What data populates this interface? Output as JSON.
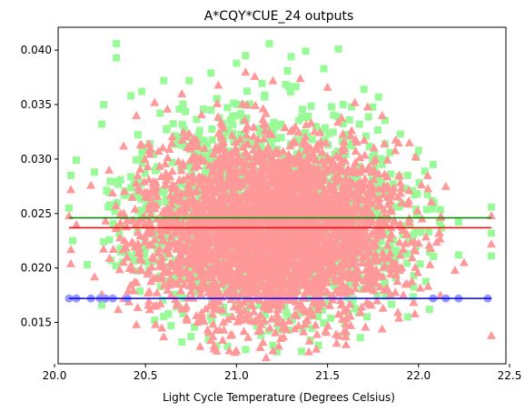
{
  "chart_data": {
    "type": "scatter",
    "title": "A*CQY*CUE_24 outputs",
    "xlabel": "Light Cycle Temperature (Degrees Celsius)",
    "ylabel": "",
    "xlim": [
      20.02,
      22.48
    ],
    "ylim": [
      0.0112,
      0.0421
    ],
    "x_ticks": [
      20.0,
      20.5,
      21.0,
      21.5,
      22.0,
      22.5
    ],
    "x_tick_labels": [
      "20.0",
      "20.5",
      "21.0",
      "21.5",
      "22.0",
      "22.5"
    ],
    "y_ticks": [
      0.015,
      0.02,
      0.025,
      0.03,
      0.035,
      0.04
    ],
    "y_tick_labels": [
      "0.015",
      "0.020",
      "0.025",
      "0.030",
      "0.035",
      "0.040"
    ],
    "grid": false,
    "legend": "none",
    "series": [
      {
        "marker": "square",
        "color": "#98fb98",
        "x_range": [
          20.08,
          22.4
        ],
        "center": [
          21.2,
          0.0246
        ],
        "points": [
          [
            20.09,
            0.0285
          ],
          [
            20.08,
            0.0255
          ],
          [
            20.1,
            0.0225
          ],
          [
            20.12,
            0.0299
          ],
          [
            20.22,
            0.0288
          ],
          [
            20.26,
            0.0332
          ],
          [
            20.27,
            0.035
          ],
          [
            20.34,
            0.0406
          ],
          [
            20.34,
            0.0393
          ],
          [
            20.42,
            0.0358
          ],
          [
            20.48,
            0.0362
          ],
          [
            20.6,
            0.0372
          ],
          [
            20.74,
            0.0372
          ],
          [
            20.86,
            0.0379
          ],
          [
            21.0,
            0.0388
          ],
          [
            21.05,
            0.0395
          ],
          [
            21.18,
            0.0406
          ],
          [
            21.3,
            0.0394
          ],
          [
            21.38,
            0.0399
          ],
          [
            21.48,
            0.0383
          ],
          [
            21.56,
            0.0401
          ],
          [
            21.7,
            0.0364
          ],
          [
            21.78,
            0.0357
          ],
          [
            21.9,
            0.0323
          ],
          [
            22.0,
            0.0308
          ],
          [
            22.08,
            0.0295
          ],
          [
            22.22,
            0.0242
          ],
          [
            22.4,
            0.0256
          ],
          [
            22.4,
            0.0232
          ],
          [
            22.4,
            0.0211
          ],
          [
            22.22,
            0.0212
          ],
          [
            20.55,
            0.0152
          ],
          [
            20.7,
            0.0132
          ],
          [
            20.95,
            0.0128
          ],
          [
            21.05,
            0.0125
          ],
          [
            21.2,
            0.0129
          ],
          [
            21.45,
            0.0129
          ],
          [
            21.68,
            0.0136
          ],
          [
            21.94,
            0.0155
          ],
          [
            22.06,
            0.0162
          ],
          [
            20.26,
            0.0166
          ],
          [
            20.18,
            0.0203
          ],
          [
            20.27,
            0.0224
          ],
          [
            20.58,
            0.0342
          ],
          [
            20.86,
            0.0345
          ],
          [
            21.28,
            0.0381
          ],
          [
            21.62,
            0.0336
          ],
          [
            21.95,
            0.0226
          ]
        ]
      },
      {
        "marker": "triangle",
        "color": "#ff9999",
        "x_range": [
          20.08,
          22.4
        ],
        "center": [
          21.2,
          0.0237
        ],
        "points": [
          [
            20.09,
            0.0272
          ],
          [
            20.08,
            0.0248
          ],
          [
            20.09,
            0.0217
          ],
          [
            20.09,
            0.0204
          ],
          [
            20.2,
            0.0276
          ],
          [
            20.3,
            0.029
          ],
          [
            20.38,
            0.0312
          ],
          [
            20.45,
            0.034
          ],
          [
            20.55,
            0.0352
          ],
          [
            20.7,
            0.036
          ],
          [
            20.9,
            0.0368
          ],
          [
            21.05,
            0.038
          ],
          [
            21.2,
            0.0372
          ],
          [
            21.35,
            0.0374
          ],
          [
            21.5,
            0.0366
          ],
          [
            21.65,
            0.0352
          ],
          [
            21.8,
            0.034
          ],
          [
            21.95,
            0.0315
          ],
          [
            22.05,
            0.0285
          ],
          [
            22.15,
            0.0275
          ],
          [
            22.4,
            0.0248
          ],
          [
            22.4,
            0.0222
          ],
          [
            22.4,
            0.0138
          ],
          [
            22.25,
            0.0205
          ],
          [
            22.12,
            0.0175
          ],
          [
            21.98,
            0.0158
          ],
          [
            21.8,
            0.0144
          ],
          [
            21.6,
            0.0137
          ],
          [
            21.4,
            0.0133
          ],
          [
            21.2,
            0.0124
          ],
          [
            21.0,
            0.0124
          ],
          [
            20.8,
            0.0128
          ],
          [
            20.6,
            0.0137
          ],
          [
            20.45,
            0.0148
          ],
          [
            20.35,
            0.0162
          ],
          [
            20.26,
            0.0176
          ],
          [
            20.22,
            0.0192
          ],
          [
            20.12,
            0.024
          ],
          [
            21.1,
            0.0376
          ],
          [
            21.72,
            0.0348
          ],
          [
            20.62,
            0.0346
          ],
          [
            20.38,
            0.0172
          ],
          [
            22.2,
            0.0198
          ],
          [
            21.55,
            0.0131
          ]
        ]
      },
      {
        "marker": "circle",
        "color": "#9999ff",
        "points": [
          [
            20.08,
            0.0172
          ],
          [
            20.12,
            0.0172
          ],
          [
            20.2,
            0.0172
          ],
          [
            20.25,
            0.0172
          ],
          [
            20.28,
            0.0172
          ],
          [
            20.32,
            0.0172
          ],
          [
            20.4,
            0.0172
          ],
          [
            22.08,
            0.0172
          ],
          [
            22.15,
            0.0172
          ],
          [
            22.22,
            0.0172
          ],
          [
            22.38,
            0.0172
          ]
        ]
      }
    ],
    "lines": [
      {
        "color": "#008000",
        "y": 0.0246,
        "x": [
          20.08,
          22.4
        ]
      },
      {
        "color": "#ff0000",
        "y": 0.0237,
        "x": [
          20.08,
          22.4
        ]
      },
      {
        "color": "#0000ff",
        "y": 0.0172,
        "x": [
          20.08,
          22.4
        ]
      }
    ]
  }
}
